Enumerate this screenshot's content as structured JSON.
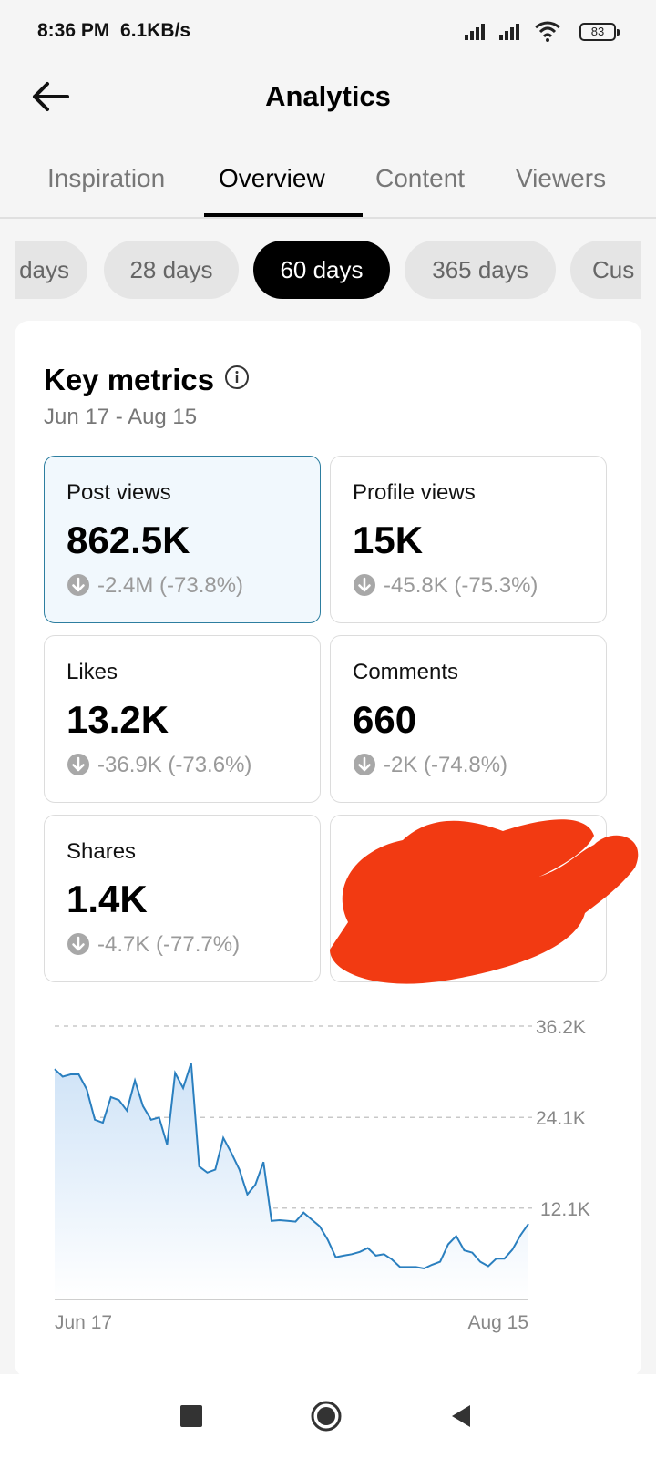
{
  "status_bar": {
    "time": "8:36 PM",
    "speed": "6.1KB/s",
    "battery": "83"
  },
  "header": {
    "title": "Analytics",
    "back_icon": "arrow-left-icon"
  },
  "tabs": [
    {
      "label": "Inspiration",
      "active": false
    },
    {
      "label": "Overview",
      "active": true
    },
    {
      "label": "Content",
      "active": false
    },
    {
      "label": "Viewers",
      "active": false
    }
  ],
  "period_chips": [
    {
      "label": "days",
      "active": false
    },
    {
      "label": "28 days",
      "active": false
    },
    {
      "label": "60 days",
      "active": true
    },
    {
      "label": "365 days",
      "active": false
    },
    {
      "label": "Cus",
      "active": false
    }
  ],
  "key_metrics": {
    "title": "Key metrics",
    "date_range": "Jun 17 - Aug 15",
    "cards": [
      {
        "label": "Post views",
        "value": "862.5K",
        "change": "-2.4M (-73.8%)",
        "selected": true
      },
      {
        "label": "Profile views",
        "value": "15K",
        "change": "-45.8K (-75.3%)",
        "selected": false
      },
      {
        "label": "Likes",
        "value": "13.2K",
        "change": "-36.9K (-73.6%)",
        "selected": false
      },
      {
        "label": "Comments",
        "value": "660",
        "change": "-2K (-74.8%)",
        "selected": false
      },
      {
        "label": "Shares",
        "value": "1.4K",
        "change": "-4.7K (-77.7%)",
        "selected": false
      }
    ]
  },
  "colors": {
    "accent_line": "#2a7fbf",
    "selected_border": "#2d7ea0",
    "redaction": "#f23a12"
  },
  "chart_data": {
    "type": "area",
    "x_labels": [
      "Jun 17",
      "Aug 15"
    ],
    "y_ticks": [
      "36.2K",
      "24.1K",
      "12.1K"
    ],
    "y_tick_values": [
      36200,
      24100,
      12100
    ],
    "ylim": [
      0,
      36200
    ],
    "grid": true,
    "values": [
      30500,
      29500,
      29800,
      29800,
      27800,
      23800,
      23400,
      26800,
      26400,
      25000,
      29000,
      25600,
      23800,
      24100,
      20500,
      30000,
      28000,
      31300,
      17600,
      16800,
      17200,
      21400,
      19400,
      17200,
      13900,
      15200,
      18200,
      10400,
      10500,
      10400,
      10300,
      11500,
      10600,
      9700,
      7900,
      5600,
      5800,
      6000,
      6300,
      6800,
      5800,
      6000,
      5300,
      4300,
      4300,
      4300,
      4100,
      4600,
      5000,
      7300,
      8400,
      6500,
      6200,
      5000,
      4400,
      5400,
      5400,
      6600,
      8500,
      10000
    ]
  }
}
